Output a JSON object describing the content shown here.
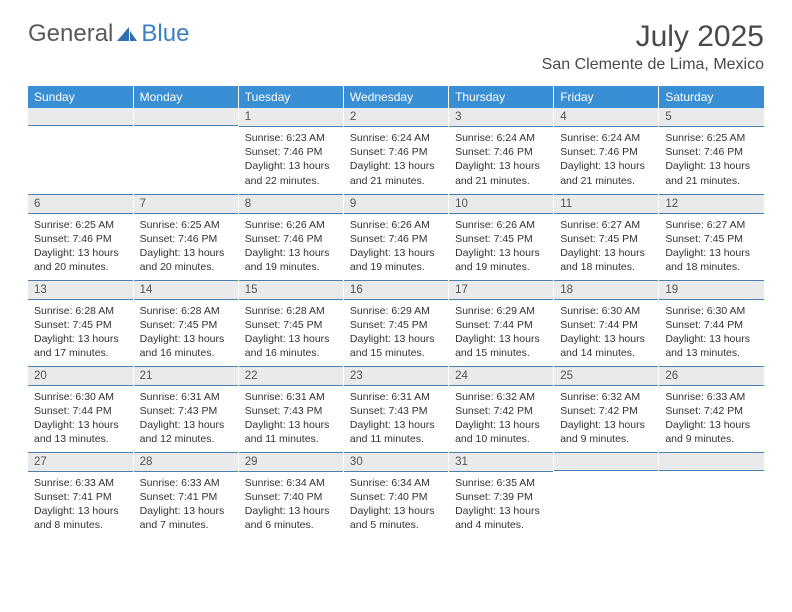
{
  "brand": {
    "part1": "General",
    "part2": "Blue"
  },
  "title": "July 2025",
  "location": "San Clemente de Lima, Mexico",
  "colors": {
    "header_bg": "#3a8fd4",
    "header_fg": "#ffffff",
    "daynum_bg": "#e9eaeb",
    "rule": "#4a7fb0",
    "brand_gray": "#5a5a5a",
    "brand_blue": "#3a7fc4",
    "text": "#333333"
  },
  "weekdays": [
    "Sunday",
    "Monday",
    "Tuesday",
    "Wednesday",
    "Thursday",
    "Friday",
    "Saturday"
  ],
  "weeks": [
    [
      {
        "n": "",
        "sr": "",
        "ss": "",
        "dl": ""
      },
      {
        "n": "",
        "sr": "",
        "ss": "",
        "dl": ""
      },
      {
        "n": "1",
        "sr": "Sunrise: 6:23 AM",
        "ss": "Sunset: 7:46 PM",
        "dl": "Daylight: 13 hours and 22 minutes."
      },
      {
        "n": "2",
        "sr": "Sunrise: 6:24 AM",
        "ss": "Sunset: 7:46 PM",
        "dl": "Daylight: 13 hours and 21 minutes."
      },
      {
        "n": "3",
        "sr": "Sunrise: 6:24 AM",
        "ss": "Sunset: 7:46 PM",
        "dl": "Daylight: 13 hours and 21 minutes."
      },
      {
        "n": "4",
        "sr": "Sunrise: 6:24 AM",
        "ss": "Sunset: 7:46 PM",
        "dl": "Daylight: 13 hours and 21 minutes."
      },
      {
        "n": "5",
        "sr": "Sunrise: 6:25 AM",
        "ss": "Sunset: 7:46 PM",
        "dl": "Daylight: 13 hours and 21 minutes."
      }
    ],
    [
      {
        "n": "6",
        "sr": "Sunrise: 6:25 AM",
        "ss": "Sunset: 7:46 PM",
        "dl": "Daylight: 13 hours and 20 minutes."
      },
      {
        "n": "7",
        "sr": "Sunrise: 6:25 AM",
        "ss": "Sunset: 7:46 PM",
        "dl": "Daylight: 13 hours and 20 minutes."
      },
      {
        "n": "8",
        "sr": "Sunrise: 6:26 AM",
        "ss": "Sunset: 7:46 PM",
        "dl": "Daylight: 13 hours and 19 minutes."
      },
      {
        "n": "9",
        "sr": "Sunrise: 6:26 AM",
        "ss": "Sunset: 7:46 PM",
        "dl": "Daylight: 13 hours and 19 minutes."
      },
      {
        "n": "10",
        "sr": "Sunrise: 6:26 AM",
        "ss": "Sunset: 7:45 PM",
        "dl": "Daylight: 13 hours and 19 minutes."
      },
      {
        "n": "11",
        "sr": "Sunrise: 6:27 AM",
        "ss": "Sunset: 7:45 PM",
        "dl": "Daylight: 13 hours and 18 minutes."
      },
      {
        "n": "12",
        "sr": "Sunrise: 6:27 AM",
        "ss": "Sunset: 7:45 PM",
        "dl": "Daylight: 13 hours and 18 minutes."
      }
    ],
    [
      {
        "n": "13",
        "sr": "Sunrise: 6:28 AM",
        "ss": "Sunset: 7:45 PM",
        "dl": "Daylight: 13 hours and 17 minutes."
      },
      {
        "n": "14",
        "sr": "Sunrise: 6:28 AM",
        "ss": "Sunset: 7:45 PM",
        "dl": "Daylight: 13 hours and 16 minutes."
      },
      {
        "n": "15",
        "sr": "Sunrise: 6:28 AM",
        "ss": "Sunset: 7:45 PM",
        "dl": "Daylight: 13 hours and 16 minutes."
      },
      {
        "n": "16",
        "sr": "Sunrise: 6:29 AM",
        "ss": "Sunset: 7:45 PM",
        "dl": "Daylight: 13 hours and 15 minutes."
      },
      {
        "n": "17",
        "sr": "Sunrise: 6:29 AM",
        "ss": "Sunset: 7:44 PM",
        "dl": "Daylight: 13 hours and 15 minutes."
      },
      {
        "n": "18",
        "sr": "Sunrise: 6:30 AM",
        "ss": "Sunset: 7:44 PM",
        "dl": "Daylight: 13 hours and 14 minutes."
      },
      {
        "n": "19",
        "sr": "Sunrise: 6:30 AM",
        "ss": "Sunset: 7:44 PM",
        "dl": "Daylight: 13 hours and 13 minutes."
      }
    ],
    [
      {
        "n": "20",
        "sr": "Sunrise: 6:30 AM",
        "ss": "Sunset: 7:44 PM",
        "dl": "Daylight: 13 hours and 13 minutes."
      },
      {
        "n": "21",
        "sr": "Sunrise: 6:31 AM",
        "ss": "Sunset: 7:43 PM",
        "dl": "Daylight: 13 hours and 12 minutes."
      },
      {
        "n": "22",
        "sr": "Sunrise: 6:31 AM",
        "ss": "Sunset: 7:43 PM",
        "dl": "Daylight: 13 hours and 11 minutes."
      },
      {
        "n": "23",
        "sr": "Sunrise: 6:31 AM",
        "ss": "Sunset: 7:43 PM",
        "dl": "Daylight: 13 hours and 11 minutes."
      },
      {
        "n": "24",
        "sr": "Sunrise: 6:32 AM",
        "ss": "Sunset: 7:42 PM",
        "dl": "Daylight: 13 hours and 10 minutes."
      },
      {
        "n": "25",
        "sr": "Sunrise: 6:32 AM",
        "ss": "Sunset: 7:42 PM",
        "dl": "Daylight: 13 hours and 9 minutes."
      },
      {
        "n": "26",
        "sr": "Sunrise: 6:33 AM",
        "ss": "Sunset: 7:42 PM",
        "dl": "Daylight: 13 hours and 9 minutes."
      }
    ],
    [
      {
        "n": "27",
        "sr": "Sunrise: 6:33 AM",
        "ss": "Sunset: 7:41 PM",
        "dl": "Daylight: 13 hours and 8 minutes."
      },
      {
        "n": "28",
        "sr": "Sunrise: 6:33 AM",
        "ss": "Sunset: 7:41 PM",
        "dl": "Daylight: 13 hours and 7 minutes."
      },
      {
        "n": "29",
        "sr": "Sunrise: 6:34 AM",
        "ss": "Sunset: 7:40 PM",
        "dl": "Daylight: 13 hours and 6 minutes."
      },
      {
        "n": "30",
        "sr": "Sunrise: 6:34 AM",
        "ss": "Sunset: 7:40 PM",
        "dl": "Daylight: 13 hours and 5 minutes."
      },
      {
        "n": "31",
        "sr": "Sunrise: 6:35 AM",
        "ss": "Sunset: 7:39 PM",
        "dl": "Daylight: 13 hours and 4 minutes."
      },
      {
        "n": "",
        "sr": "",
        "ss": "",
        "dl": ""
      },
      {
        "n": "",
        "sr": "",
        "ss": "",
        "dl": ""
      }
    ]
  ]
}
